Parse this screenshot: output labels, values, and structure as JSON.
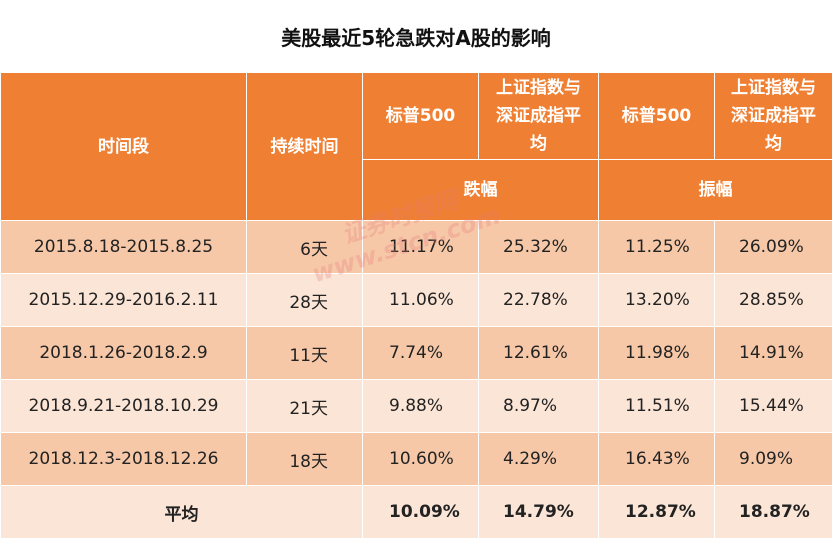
{
  "title": "美股最近5轮急跌对A股的影响",
  "headers": {
    "period": "时间段",
    "duration": "持续时间",
    "sp500_a": "标普500",
    "ashare_a_line1": "上证指数与",
    "ashare_a_line2": "深证成指平",
    "ashare_a_line3": "均",
    "sp500_b": "标普500",
    "ashare_b_line1": "上证指数与",
    "ashare_b_line2": "深证成指平",
    "ashare_b_line3": "均",
    "decline": "跌幅",
    "amplitude": "振幅"
  },
  "rows": [
    {
      "period": "2015.8.18-2015.8.25",
      "duration": "6天",
      "sp_decline": "11.17%",
      "a_decline": "25.32%",
      "sp_amp": "11.25%",
      "a_amp": "26.09%"
    },
    {
      "period": "2015.12.29-2016.2.11",
      "duration": "28天",
      "sp_decline": "11.06%",
      "a_decline": "22.78%",
      "sp_amp": "13.20%",
      "a_amp": "28.85%"
    },
    {
      "period": "2018.1.26-2018.2.9",
      "duration": "11天",
      "sp_decline": "7.74%",
      "a_decline": "12.61%",
      "sp_amp": "11.98%",
      "a_amp": "14.91%"
    },
    {
      "period": "2018.9.21-2018.10.29",
      "duration": "21天",
      "sp_decline": "9.88%",
      "a_decline": "8.97%",
      "sp_amp": "11.51%",
      "a_amp": "15.44%"
    },
    {
      "period": "2018.12.3-2018.12.26",
      "duration": "18天",
      "sp_decline": "10.60%",
      "a_decline": "4.29%",
      "sp_amp": "16.43%",
      "a_amp": "9.09%"
    }
  ],
  "average": {
    "label": "平均",
    "sp_decline": "10.09%",
    "a_decline": "14.79%",
    "sp_amp": "12.87%",
    "a_amp": "18.87%"
  },
  "watermark": {
    "line1": "证券时报网",
    "line2": "www.stcn.com"
  },
  "colors": {
    "header": "#ef8033",
    "row_dark": "#f6c8a8",
    "row_light": "#fbe5d6"
  }
}
